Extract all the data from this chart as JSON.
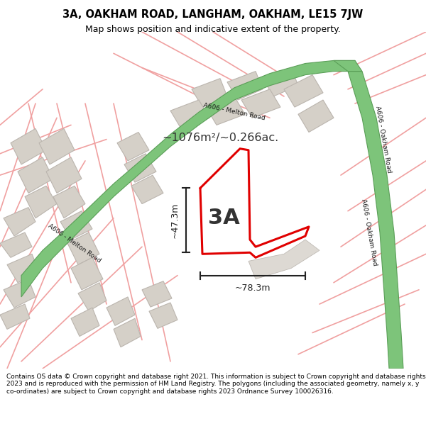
{
  "title": "3A, OAKHAM ROAD, LANGHAM, OAKHAM, LE15 7JW",
  "subtitle": "Map shows position and indicative extent of the property.",
  "footer": "Contains OS data © Crown copyright and database right 2021. This information is subject to Crown copyright and database rights 2023 and is reproduced with the permission of HM Land Registry. The polygons (including the associated geometry, namely x, y co-ordinates) are subject to Crown copyright and database rights 2023 Ordnance Survey 100026316.",
  "road_green": "#7dc47a",
  "road_green_border": "#5a9e57",
  "property_outline": "#e00000",
  "street_line": "#f0a0a0",
  "dim_line": "#222222",
  "label_3A": "3A",
  "area_label": "~1076m²/~0.266ac.",
  "dim_h": "~47.3m",
  "dim_w": "~78.3m"
}
